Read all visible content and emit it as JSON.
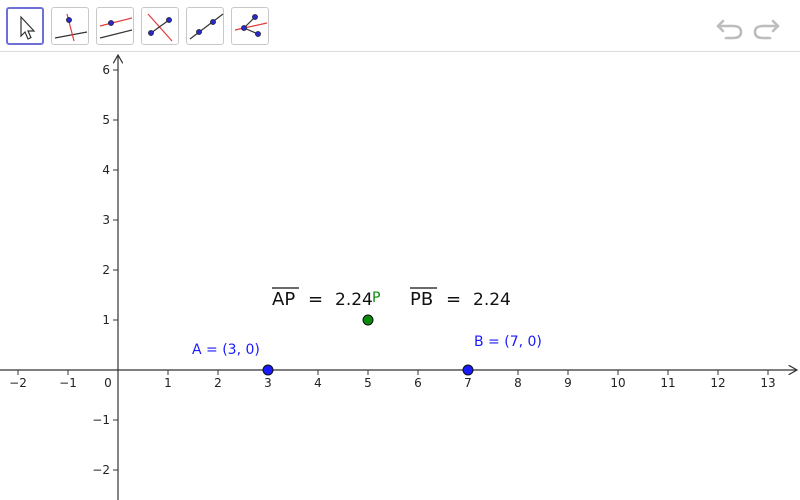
{
  "toolbar": {
    "tools": [
      {
        "icon": "move-arrow-icon",
        "selected": true
      },
      {
        "icon": "perpendicular-line-icon",
        "selected": false
      },
      {
        "icon": "parallel-line-icon",
        "selected": false
      },
      {
        "icon": "perpendicular-bisector-icon",
        "selected": false
      },
      {
        "icon": "angle-bisector-icon",
        "selected": false
      },
      {
        "icon": "tangents-icon",
        "selected": false
      }
    ],
    "undo_icon": "undo-icon",
    "redo_icon": "redo-icon"
  },
  "graph": {
    "x_ticks": [
      "−2",
      "−1",
      "0",
      "1",
      "2",
      "3",
      "4",
      "5",
      "6",
      "7",
      "8",
      "9",
      "10",
      "11",
      "12",
      "13"
    ],
    "y_ticks": [
      "6",
      "5",
      "4",
      "3",
      "2",
      "1",
      "−1",
      "−2"
    ],
    "points": [
      {
        "name": "A",
        "x": 3,
        "y": 0,
        "color": "#1a1aff",
        "label": "A = (3, 0)"
      },
      {
        "name": "B",
        "x": 7,
        "y": 0,
        "color": "#1a1aff",
        "label": "B = (7, 0)"
      },
      {
        "name": "P",
        "x": 5,
        "y": 1,
        "color": "#0a8a0a",
        "label": "P"
      }
    ],
    "measurements": [
      {
        "segment": "AP",
        "equals": "=",
        "value": "2.24"
      },
      {
        "segment": "PB",
        "equals": "=",
        "value": "2.24"
      }
    ]
  }
}
